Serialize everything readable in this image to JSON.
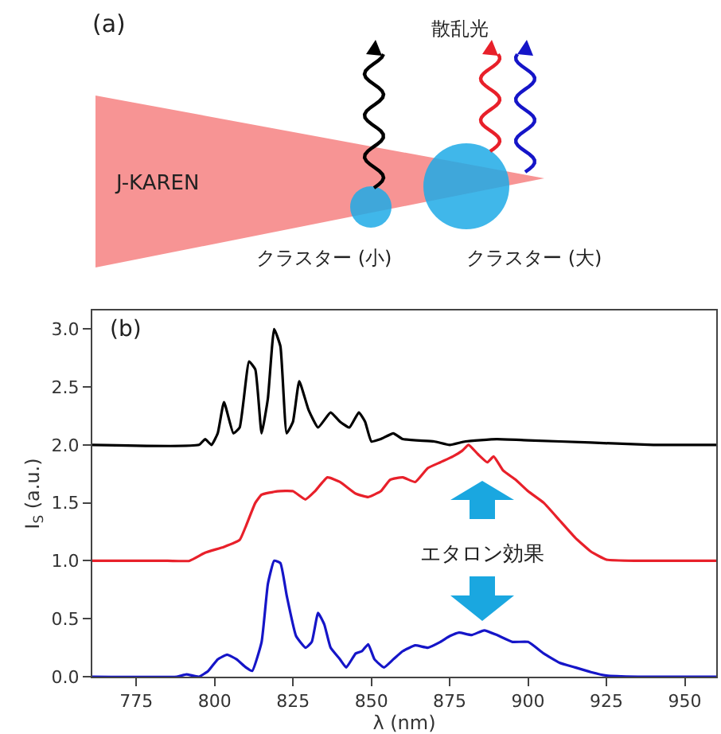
{
  "chart_data": {
    "type": "line",
    "xlabel": "λ (nm)",
    "ylabel": "I$_{S}$ (a.u.)",
    "annotations": [
      "(a)",
      "散乱光",
      "J-KAREN",
      "クラスター (小)",
      "クラスター (大)",
      "(b)",
      "エタロン効果"
    ],
    "xlim": [
      761,
      960
    ],
    "xticks": [
      775,
      800,
      825,
      850,
      875,
      900,
      925,
      950
    ],
    "ylim": [
      0,
      3.16
    ],
    "yticks": [
      {
        "value": 0,
        "label": "0.0"
      },
      {
        "value": 0.5,
        "label": "0.5"
      },
      {
        "value": 1,
        "label": "1.0"
      },
      {
        "value": 1.5,
        "label": "1.5"
      },
      {
        "value": 2,
        "label": "2.0"
      },
      {
        "value": 2.5,
        "label": "2.5"
      },
      {
        "value": 3,
        "label": "3.0"
      }
    ],
    "series": [
      {
        "color": "#000000",
        "x": [
          761,
          795,
          797,
          799,
          801,
          803,
          806,
          808,
          811,
          813,
          815,
          817,
          819,
          821,
          823,
          825,
          827,
          830,
          833,
          837,
          840,
          843,
          846,
          848,
          850,
          853,
          857,
          860,
          870,
          875,
          880,
          890,
          900,
          920,
          940,
          960
        ],
        "values": [
          2.0,
          2.0,
          2.05,
          2.0,
          2.1,
          2.37,
          2.1,
          2.15,
          2.72,
          2.65,
          2.1,
          2.4,
          3.0,
          2.85,
          2.1,
          2.2,
          2.55,
          2.3,
          2.15,
          2.28,
          2.2,
          2.15,
          2.28,
          2.2,
          2.03,
          2.05,
          2.1,
          2.05,
          2.03,
          2.0,
          2.03,
          2.05,
          2.04,
          2.02,
          2.0,
          2.0
        ]
      },
      {
        "color": "#e8202a",
        "x": [
          761,
          785,
          792,
          797,
          803,
          808,
          810,
          813,
          815,
          820,
          825,
          829,
          832,
          836,
          840,
          845,
          849,
          853,
          856,
          860,
          864,
          868,
          872,
          876,
          879,
          881,
          884,
          887,
          889,
          892,
          896,
          900,
          905,
          910,
          915,
          920,
          925,
          935,
          960
        ],
        "values": [
          1.0,
          1.0,
          1.0,
          1.07,
          1.12,
          1.18,
          1.3,
          1.5,
          1.57,
          1.6,
          1.6,
          1.53,
          1.6,
          1.72,
          1.68,
          1.58,
          1.55,
          1.6,
          1.7,
          1.72,
          1.68,
          1.8,
          1.85,
          1.9,
          1.95,
          2.0,
          1.92,
          1.85,
          1.9,
          1.78,
          1.7,
          1.6,
          1.5,
          1.35,
          1.2,
          1.08,
          1.01,
          1.0,
          1.0
        ]
      },
      {
        "color": "#1515c8",
        "x": [
          761,
          788,
          791,
          795,
          798,
          801,
          804,
          807,
          810,
          812,
          815,
          817,
          819,
          821,
          823,
          826,
          829,
          831,
          833,
          835,
          837,
          840,
          842,
          845,
          847,
          849,
          851,
          854,
          857,
          860,
          864,
          868,
          872,
          875,
          878,
          882,
          886,
          890,
          895,
          900,
          905,
          910,
          915,
          920,
          925,
          935,
          960
        ],
        "values": [
          0.0,
          0.0,
          0.02,
          0.0,
          0.05,
          0.15,
          0.19,
          0.15,
          0.08,
          0.05,
          0.3,
          0.8,
          1.0,
          0.98,
          0.7,
          0.35,
          0.25,
          0.3,
          0.55,
          0.45,
          0.25,
          0.15,
          0.08,
          0.2,
          0.22,
          0.28,
          0.15,
          0.08,
          0.15,
          0.22,
          0.27,
          0.25,
          0.3,
          0.35,
          0.38,
          0.36,
          0.4,
          0.36,
          0.3,
          0.3,
          0.2,
          0.12,
          0.08,
          0.04,
          0.01,
          0.0,
          0.0
        ]
      }
    ]
  }
}
